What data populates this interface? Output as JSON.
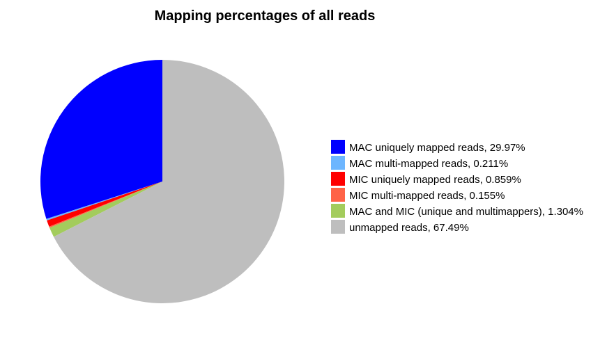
{
  "chart_data": {
    "type": "pie",
    "title": "Mapping percentages of all reads",
    "slices": [
      {
        "label": "MAC uniquely mapped reads, 29.97%",
        "value": 29.97,
        "color": "#0000ff"
      },
      {
        "label": "MAC multi-mapped reads, 0.211%",
        "value": 0.211,
        "color": "#6db6ff"
      },
      {
        "label": "MIC uniquely mapped reads, 0.859%",
        "value": 0.859,
        "color": "#ff0000"
      },
      {
        "label": "MIC multi-mapped reads, 0.155%",
        "value": 0.155,
        "color": "#ff6347"
      },
      {
        "label": "MAC and MIC (unique and multimappers), 1.304%",
        "value": 1.304,
        "color": "#a3cc5c"
      },
      {
        "label": "unmapped reads, 67.49%",
        "value": 67.49,
        "color": "#bebebe"
      }
    ],
    "direction": "counterclockwise",
    "start_angle": "12 o'clock",
    "legend_position": "right"
  }
}
